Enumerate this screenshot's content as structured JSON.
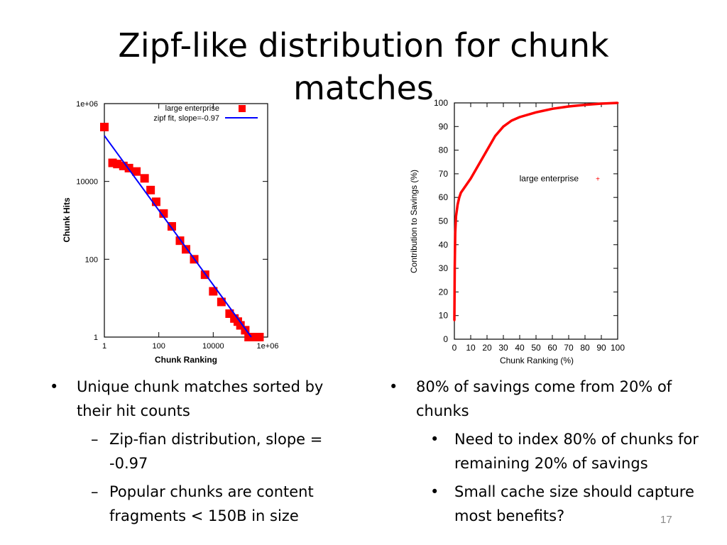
{
  "slide": {
    "title_line1": "Zipf-like distribution for chunk",
    "title_line2": "matches",
    "page_number": "17"
  },
  "chart_data": [
    {
      "type": "scatter",
      "xlabel": "Chunk Ranking",
      "ylabel": "Chunk Hits",
      "xscale": "log",
      "yscale": "log",
      "xlim": [
        1,
        1000000
      ],
      "ylim": [
        1,
        1000000
      ],
      "xticks": [
        "1",
        "100",
        "10000",
        "1e+06"
      ],
      "yticks": [
        "1",
        "100",
        "10000",
        "1e+06"
      ],
      "legend_position": "top-right",
      "grid": false,
      "series": [
        {
          "name": "large enterprise",
          "style": "red squares",
          "color": "#ff0000",
          "x": [
            1,
            2,
            3,
            5,
            8,
            15,
            30,
            50,
            80,
            150,
            300,
            600,
            1000,
            2000,
            5000,
            10000,
            20000,
            40000,
            60000,
            80000,
            100000,
            150000,
            200000,
            300000,
            500000
          ],
          "y": [
            250000,
            30000,
            28000,
            25000,
            22000,
            18000,
            12000,
            6000,
            3000,
            1500,
            700,
            300,
            180,
            100,
            40,
            15,
            8,
            4,
            3,
            2.5,
            2,
            1.5,
            1,
            1,
            1
          ]
        },
        {
          "name": "zipf fit, slope=-0.97",
          "style": "blue line",
          "color": "#0000ff",
          "slope": -0.97,
          "x": [
            1,
            250000
          ],
          "y": [
            150000,
            1
          ]
        }
      ]
    },
    {
      "type": "line",
      "xlabel": "Chunk Ranking (%)",
      "ylabel": "Contribution to Savings (%)",
      "xlim": [
        0,
        100
      ],
      "ylim": [
        0,
        100
      ],
      "xticks": [
        "0",
        "10",
        "20",
        "30",
        "40",
        "50",
        "60",
        "70",
        "80",
        "90",
        "100"
      ],
      "yticks": [
        "0",
        "10",
        "20",
        "30",
        "40",
        "50",
        "60",
        "70",
        "80",
        "90",
        "100"
      ],
      "legend_position": "center-right",
      "grid": false,
      "series": [
        {
          "name": "large enterprise",
          "color": "#ff0000",
          "x": [
            0,
            0.2,
            0.5,
            1,
            2,
            3,
            4,
            6,
            10,
            15,
            20,
            25,
            30,
            35,
            40,
            50,
            60,
            70,
            80,
            90,
            100
          ],
          "y": [
            8,
            30,
            45,
            52,
            57,
            60,
            62,
            64,
            68,
            74,
            80,
            86,
            90,
            92.5,
            94,
            96,
            97.5,
            98.5,
            99.2,
            99.7,
            100
          ]
        }
      ]
    }
  ],
  "bullets_left": {
    "b1": "Unique chunk matches  sorted by their hit counts",
    "b1_sub1": "Zip-fian distribution, slope = -0.97",
    "b1_sub2": "Popular chunks are content fragments < 150B in size",
    "marker": "•",
    "sub_marker": "–"
  },
  "bullets_right": {
    "b1": "80% of savings come from 20% of chunks",
    "b1_sub1": "Need to index 80% of chunks for remaining 20% of savings",
    "b1_sub2": "Small cache size should capture most benefits?",
    "marker": "•",
    "sub_marker": "•"
  }
}
